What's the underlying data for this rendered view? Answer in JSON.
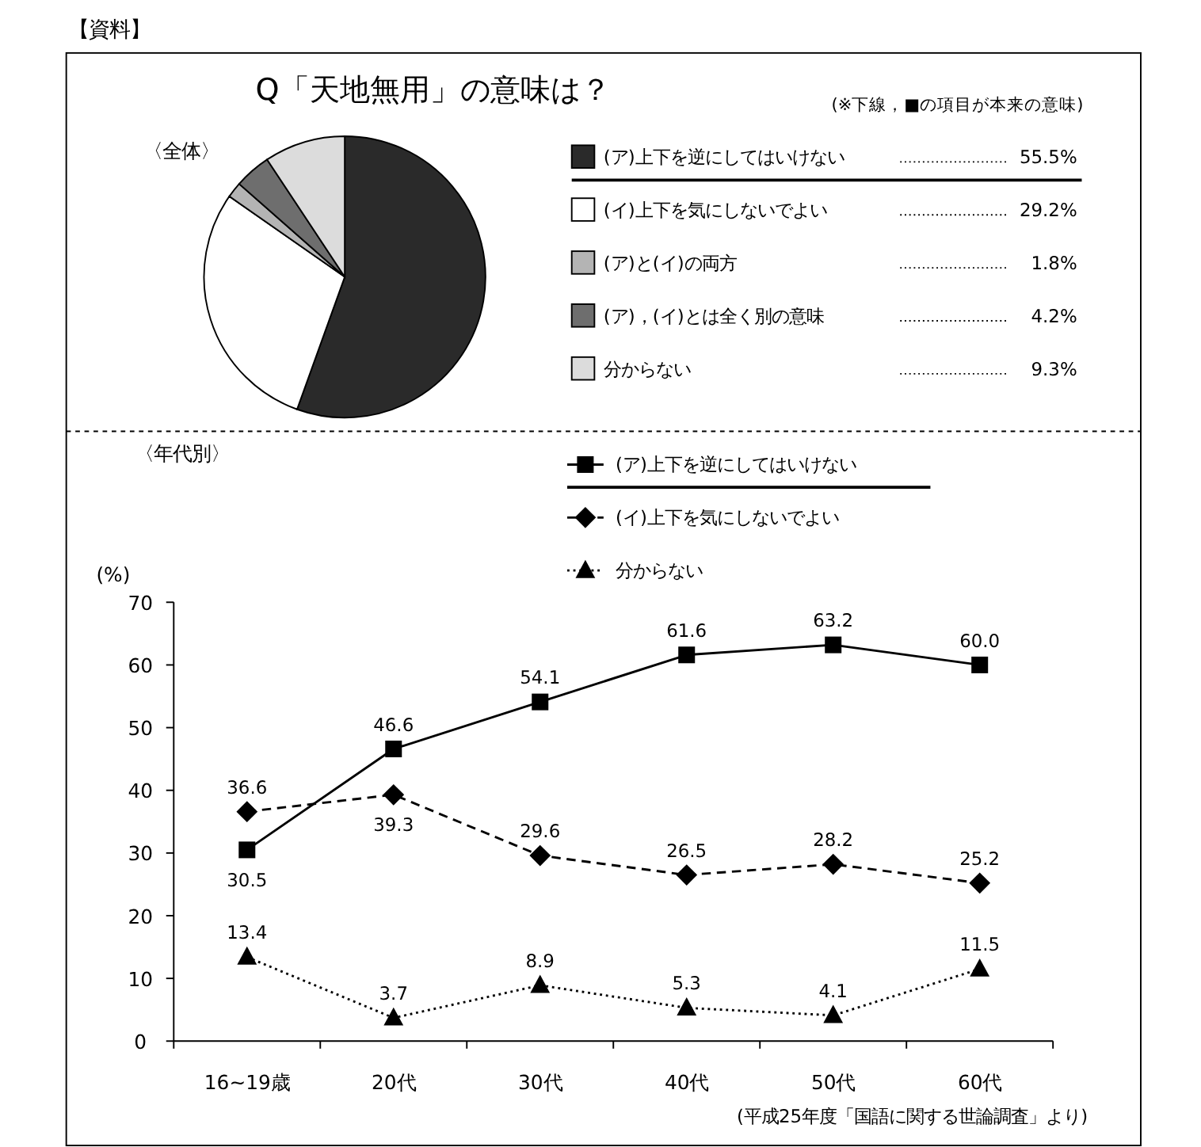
{
  "chart_data": [
    {
      "type": "pie",
      "title": "Q「天地無用」の意味は？",
      "subtitle": "〈全体〉",
      "annotations": [
        "【資料】",
        "(※下線，■の項目が本来の意味)"
      ],
      "categories": [
        "(ア)上下を逆にしてはいけない",
        "(イ)上下を気にしないでよい",
        "(ア)と(イ)の両方",
        "(ア)，(イ)とは全く別の意味",
        "分からない"
      ],
      "values": [
        55.5,
        29.2,
        1.8,
        4.2,
        9.3
      ],
      "colors": [
        "#2a2a2a",
        "#ffffff",
        "#b4b4b4",
        "#6e6e6e",
        "#dcdcdc"
      ],
      "value_labels": [
        "55.5%",
        "29.2%",
        "1.8%",
        "4.2%",
        "9.3%"
      ],
      "legend": "right"
    },
    {
      "type": "line",
      "subtitle": "〈年代別〉",
      "ylabel": "(%)",
      "annotations": [
        "(平成25年度「国語に関する世論調査」より)"
      ],
      "categories": [
        "16~19歳",
        "20代",
        "30代",
        "40代",
        "50代",
        "60代"
      ],
      "ylim": [
        0,
        70
      ],
      "yticks": [
        0,
        10,
        20,
        30,
        40,
        50,
        60,
        70
      ],
      "grid": false,
      "legend": "top right",
      "series": [
        {
          "name": "(ア)上下を逆にしてはいけない",
          "color": "#000000",
          "marker": "square",
          "line_style": "solid",
          "values": [
            30.5,
            46.6,
            54.1,
            61.6,
            63.2,
            60.0
          ],
          "value_labels": [
            "30.5",
            "46.6",
            "54.1",
            "61.6",
            "63.2",
            "60.0"
          ]
        },
        {
          "name": "(イ)上下を気にしないでよい",
          "color": "#000000",
          "marker": "diamond",
          "line_style": "dashed",
          "values": [
            36.6,
            39.3,
            29.6,
            26.5,
            28.2,
            25.2
          ],
          "value_labels": [
            "36.6",
            "39.3",
            "29.6",
            "26.5",
            "28.2",
            "25.2"
          ]
        },
        {
          "name": "分からない",
          "color": "#000000",
          "marker": "triangle",
          "line_style": "dotted",
          "values": [
            13.4,
            3.7,
            8.9,
            5.3,
            4.1,
            11.5
          ],
          "value_labels": [
            "13.4",
            "3.7",
            "8.9",
            "5.3",
            "4.1",
            "11.5"
          ]
        }
      ]
    }
  ]
}
